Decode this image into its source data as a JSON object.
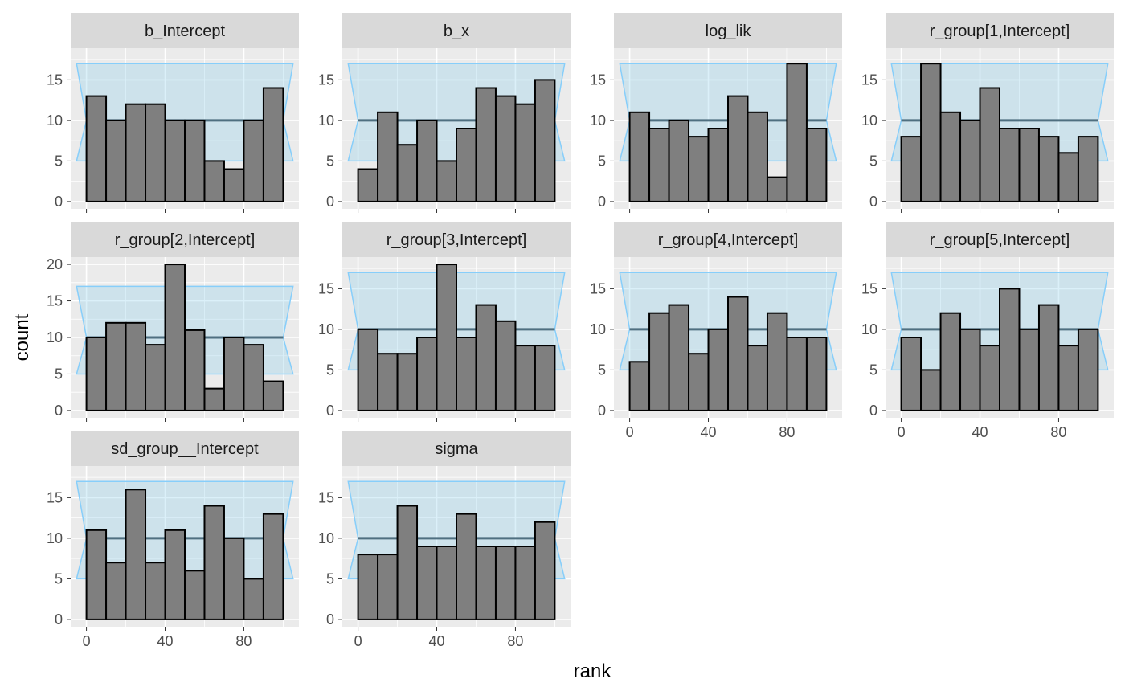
{
  "chart_data": {
    "type": "bar",
    "subtype": "rank-histogram-facets",
    "xlabel": "rank",
    "ylabel": "count",
    "xlim": [
      -8,
      108
    ],
    "x_ticks": [
      0,
      40,
      80
    ],
    "bin_width": 10,
    "bin_starts": [
      0,
      10,
      20,
      30,
      40,
      50,
      60,
      70,
      80,
      90
    ],
    "grid": true,
    "colors": {
      "panel_bg": "#ebebeb",
      "grid": "#ffffff",
      "strip_bg": "#d9d9d9",
      "bar_fill": "#7f7f7f",
      "bar_stroke": "#000000",
      "band_fill": "#87ceeb",
      "band_stroke": "#87cefa",
      "expected_line": "#4f6f80"
    },
    "panels": [
      {
        "title": "b_Intercept",
        "ylim": [
          -0.9,
          18.9
        ],
        "y_ticks": [
          0,
          5,
          10,
          15
        ],
        "expected": 10,
        "band_outer": [
          5,
          17
        ],
        "values": [
          13,
          10,
          12,
          12,
          10,
          10,
          5,
          4,
          10,
          14
        ],
        "show_x_ticks": false
      },
      {
        "title": "b_x",
        "ylim": [
          -0.9,
          18.9
        ],
        "y_ticks": [
          0,
          5,
          10,
          15
        ],
        "expected": 10,
        "band_outer": [
          5,
          17
        ],
        "values": [
          4,
          11,
          7,
          10,
          5,
          9,
          14,
          13,
          12,
          15
        ],
        "show_x_ticks": false
      },
      {
        "title": "log_lik",
        "ylim": [
          -0.9,
          18.9
        ],
        "y_ticks": [
          0,
          5,
          10,
          15
        ],
        "expected": 10,
        "band_outer": [
          5,
          17
        ],
        "values": [
          11,
          9,
          10,
          8,
          9,
          13,
          11,
          3,
          17,
          9
        ],
        "show_x_ticks": false
      },
      {
        "title": "r_group[1,Intercept]",
        "ylim": [
          -0.9,
          18.9
        ],
        "y_ticks": [
          0,
          5,
          10,
          15
        ],
        "expected": 10,
        "band_outer": [
          5,
          17
        ],
        "values": [
          8,
          17,
          11,
          10,
          14,
          9,
          9,
          8,
          6,
          8
        ],
        "show_x_ticks": false
      },
      {
        "title": "r_group[2,Intercept]",
        "ylim": [
          -1.0,
          21.0
        ],
        "y_ticks": [
          0,
          5,
          10,
          15,
          20
        ],
        "expected": 10,
        "band_outer": [
          5,
          17
        ],
        "values": [
          10,
          12,
          12,
          9,
          20,
          11,
          3,
          10,
          9,
          4
        ],
        "show_x_ticks": false
      },
      {
        "title": "r_group[3,Intercept]",
        "ylim": [
          -0.9,
          18.9
        ],
        "y_ticks": [
          0,
          5,
          10,
          15
        ],
        "expected": 10,
        "band_outer": [
          5,
          17
        ],
        "values": [
          10,
          7,
          7,
          9,
          18,
          9,
          13,
          11,
          8,
          8
        ],
        "show_x_ticks": false
      },
      {
        "title": "r_group[4,Intercept]",
        "ylim": [
          -0.9,
          18.9
        ],
        "y_ticks": [
          0,
          5,
          10,
          15
        ],
        "expected": 10,
        "band_outer": [
          5,
          17
        ],
        "values": [
          6,
          12,
          13,
          7,
          10,
          14,
          8,
          12,
          9,
          9
        ],
        "show_x_ticks": true
      },
      {
        "title": "r_group[5,Intercept]",
        "ylim": [
          -0.9,
          18.9
        ],
        "y_ticks": [
          0,
          5,
          10,
          15
        ],
        "expected": 10,
        "band_outer": [
          5,
          17
        ],
        "values": [
          9,
          5,
          12,
          10,
          8,
          15,
          10,
          13,
          8,
          10
        ],
        "show_x_ticks": true
      },
      {
        "title": "sd_group__Intercept",
        "ylim": [
          -0.9,
          18.9
        ],
        "y_ticks": [
          0,
          5,
          10,
          15
        ],
        "expected": 10,
        "band_outer": [
          5,
          17
        ],
        "values": [
          11,
          7,
          16,
          7,
          11,
          6,
          14,
          10,
          5,
          13
        ],
        "show_x_ticks": true
      },
      {
        "title": "sigma",
        "ylim": [
          -0.9,
          18.9
        ],
        "y_ticks": [
          0,
          5,
          10,
          15
        ],
        "expected": 10,
        "band_outer": [
          5,
          17
        ],
        "values": [
          8,
          8,
          14,
          9,
          9,
          13,
          9,
          9,
          9,
          12
        ],
        "show_x_ticks": true
      }
    ]
  }
}
